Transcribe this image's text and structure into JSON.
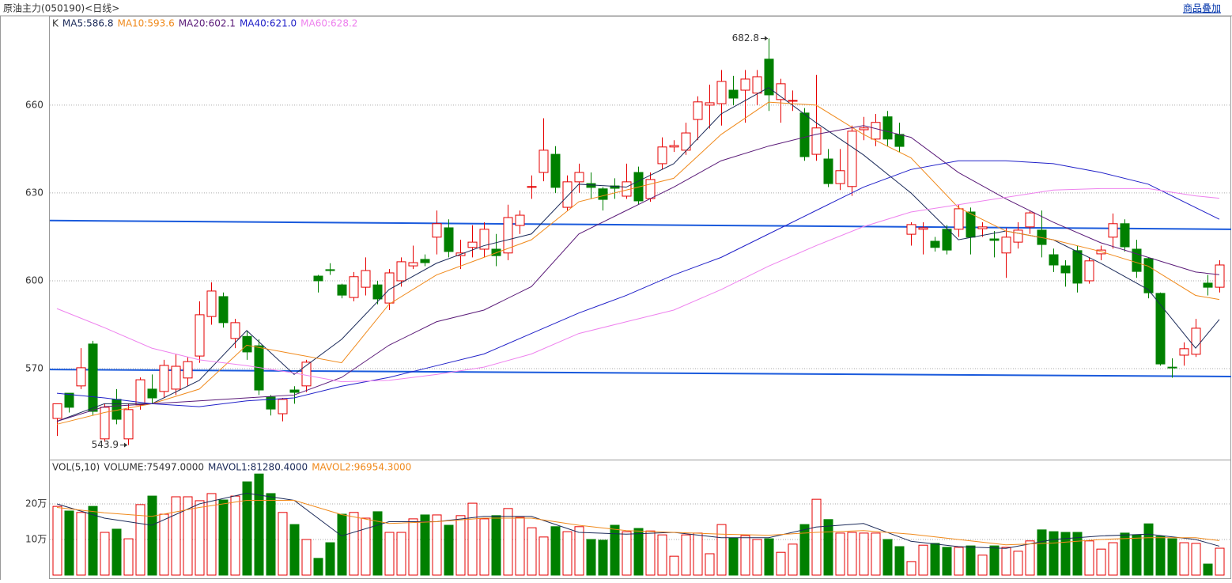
{
  "chart_data": [
    {
      "type": "candlestick",
      "title": "原油主力(050190)<日线>",
      "button": "商品叠加",
      "legend": "K",
      "ylim": [
        539.2,
        690.5
      ],
      "yticks": [
        570,
        600,
        630,
        660
      ],
      "grid": true,
      "up_color": "#e60000",
      "down_color": "#008000",
      "open": [
        553,
        561.6,
        564.1,
        578.4,
        546,
        559.5,
        546,
        557.6,
        563,
        562.2,
        563,
        566.8,
        574.3,
        587.8,
        594.6,
        580.3,
        581,
        577.8,
        560.3,
        554.6,
        562.7,
        564.1,
        601.6,
        603.8,
        598.6,
        594.3,
        597.8,
        598.6,
        592.4,
        600,
        605.1,
        607.3,
        614.9,
        618.1,
        608.6,
        611.4,
        610.8,
        610.8,
        609.5,
        618.9,
        632,
        637,
        643.2,
        625.1,
        633.8,
        633.2,
        631.4,
        632.4,
        628.9,
        637,
        628.1,
        640,
        645.7,
        644.6,
        655.1,
        660,
        660.5,
        665.1,
        665.1,
        664.1,
        675.7,
        661.9,
        661.4,
        657.3,
        643.2,
        641.6,
        633.2,
        632.2,
        651.6,
        648.4,
        656,
        650,
        615.9,
        617.6,
        613.5,
        617.6,
        617.6,
        623.5,
        617.8,
        614.3,
        609.5,
        613.2,
        618.4,
        617.3,
        608.9,
        605.1,
        610.3,
        600,
        609.2,
        614.9,
        619.5,
        610.8,
        607.6,
        595.7,
        570.5,
        574.6,
        574.9,
        599.2,
        597.8
      ],
      "high": [
        558,
        561.6,
        577,
        579.5,
        558,
        563,
        558,
        567,
        568,
        573,
        575,
        574,
        593,
        599.5,
        596,
        587,
        583,
        580,
        561,
        560,
        564,
        573,
        602,
        606,
        599,
        603,
        608,
        600,
        604,
        608,
        612,
        609,
        624,
        621,
        614,
        619,
        620,
        616,
        626,
        624,
        636,
        655.5,
        646,
        636,
        640,
        637,
        632,
        635,
        640,
        639,
        637,
        649,
        648,
        654,
        663,
        667,
        672,
        670,
        672,
        672,
        682.8,
        669,
        665,
        659,
        670.3,
        645,
        645,
        653,
        656,
        657,
        658,
        654,
        620,
        620,
        615,
        619,
        626,
        625,
        620,
        617,
        618,
        620,
        624,
        624,
        611,
        607,
        612,
        608,
        612,
        623,
        621,
        614,
        608,
        596,
        573.5,
        579,
        587,
        602,
        607
      ],
      "low": [
        547,
        555,
        563,
        554,
        545,
        551,
        543.9,
        556,
        558,
        560,
        561,
        564,
        572,
        585,
        584,
        577,
        573,
        561,
        554,
        552,
        558,
        562,
        596,
        602,
        594,
        593,
        595,
        592,
        590,
        598,
        604,
        605,
        609,
        608,
        604,
        608,
        608,
        605,
        607,
        616,
        628,
        634,
        630,
        624,
        630,
        628,
        624,
        628,
        628,
        626,
        627,
        638,
        644,
        643,
        648,
        652,
        653,
        660,
        654,
        660,
        658,
        654,
        658,
        641,
        641,
        632,
        631,
        629,
        648,
        646,
        646,
        644,
        612,
        609,
        610,
        609,
        615,
        609,
        615,
        608,
        601,
        611,
        616,
        608,
        603,
        598,
        596,
        599,
        607,
        611,
        610,
        601,
        594,
        571,
        566.9,
        571,
        574,
        595,
        596
      ],
      "close": [
        558,
        556.8,
        570.3,
        555.4,
        556.8,
        552.7,
        556,
        566.2,
        560,
        571.1,
        570.8,
        572.4,
        588.4,
        596.5,
        585.7,
        585.7,
        575.7,
        562.7,
        556.2,
        559.5,
        561.9,
        572.2,
        600,
        603.5,
        595.1,
        601.4,
        603.5,
        593.8,
        602.7,
        606.5,
        606.2,
        606.2,
        619.5,
        610,
        609.5,
        613.2,
        617.6,
        608.6,
        621.6,
        622.4,
        632.2,
        644.6,
        631.9,
        633.8,
        637,
        631.9,
        627.8,
        631.6,
        633.8,
        627.3,
        634.6,
        645.7,
        646.2,
        650.5,
        661.1,
        660.8,
        668.1,
        662.4,
        668.9,
        669.7,
        663.5,
        667.3,
        661.6,
        642.4,
        652.2,
        633.2,
        637.6,
        651.1,
        652.2,
        654.1,
        648.4,
        645.9,
        619.2,
        618.1,
        611.4,
        610.5,
        624.6,
        614.9,
        618.4,
        613.8,
        614.9,
        617.3,
        623.2,
        612.4,
        605.4,
        602.7,
        599.2,
        606.8,
        610.5,
        619.5,
        611.6,
        603.2,
        595.9,
        571.6,
        570.3,
        576.8,
        583.8,
        597.8,
        605.4
      ],
      "max_label": "682.8",
      "min_label": "543.9",
      "ma_x": [
        0,
        4,
        8,
        12,
        16,
        20,
        24,
        28,
        32,
        36,
        40,
        44,
        48,
        52,
        56,
        60,
        64,
        68,
        72,
        76,
        80,
        84,
        88,
        92,
        96,
        98
      ],
      "ma": [
        {
          "label": "MA5:586.8",
          "color": "#1c2b5a",
          "values": [
            552,
            558,
            558,
            566,
            583,
            568,
            580,
            597,
            606,
            612,
            616,
            633,
            632,
            640,
            657,
            666,
            654,
            643,
            630,
            614,
            617,
            614,
            606,
            597,
            577,
            586.8
          ]
        },
        {
          "label": "MA10:593.6",
          "color": "#f08a1c",
          "values": [
            551,
            555,
            558,
            563,
            578,
            575,
            572,
            592,
            602,
            608,
            614,
            627,
            631,
            635,
            650,
            661,
            660,
            650,
            642,
            625,
            617,
            614,
            610,
            605,
            595,
            593.6
          ]
        },
        {
          "label": "MA20:602.1",
          "color": "#5a1a78",
          "values": [
            552,
            557,
            558,
            559,
            560,
            561,
            567,
            578,
            586,
            590,
            598,
            616,
            624,
            632,
            641,
            646,
            650,
            653,
            649,
            637,
            628,
            620,
            613,
            608,
            603,
            602.1
          ]
        },
        {
          "label": "MA40:621.0",
          "color": "#2020c8",
          "values": [
            561.6,
            560,
            558,
            557,
            559,
            560,
            564,
            567,
            571,
            575,
            582,
            589,
            595,
            602,
            608,
            616,
            624,
            632,
            638,
            641,
            641,
            640,
            637,
            633,
            625,
            621
          ]
        },
        {
          "label": "MA60:628.2",
          "color": "#ee82ee",
          "values": [
            590.5,
            584,
            577,
            573,
            571,
            568.5,
            565.5,
            566,
            568,
            570.5,
            575,
            582,
            586,
            590,
            597,
            605,
            612,
            618.5,
            623.5,
            626,
            628.5,
            631,
            631.5,
            631.5,
            629,
            628.2
          ]
        }
      ],
      "trendlines": [
        {
          "color": "#1a5adc",
          "values": [
            620.6,
            617.6
          ]
        },
        {
          "color": "#1a5adc",
          "values": [
            569.7,
            567.3
          ]
        }
      ]
    },
    {
      "type": "volume",
      "legend": "VOL(5,10)",
      "label": "VOLUME:75497.0000",
      "ylim": [
        0,
        320000
      ],
      "yticks": [
        {
          "value": 200000,
          "label": "20万"
        },
        {
          "value": 100000,
          "label": "10万"
        }
      ],
      "grid": true,
      "values": [
        193000,
        180000,
        176000,
        193000,
        120000,
        129000,
        102000,
        198000,
        222000,
        171000,
        220000,
        220000,
        209000,
        229000,
        211000,
        222000,
        262000,
        284000,
        229000,
        176000,
        142000,
        100000,
        47000,
        91000,
        171000,
        176000,
        160000,
        178000,
        120000,
        120000,
        158000,
        169000,
        169000,
        140000,
        167000,
        202000,
        158000,
        167000,
        187000,
        162000,
        133000,
        107000,
        136000,
        122000,
        136000,
        100000,
        98000,
        140000,
        122000,
        131000,
        124000,
        113000,
        53000,
        113000,
        118000,
        60000,
        142000,
        104000,
        111000,
        100000,
        102000,
        64000,
        87000,
        142000,
        213000,
        156000,
        118000,
        120000,
        118000,
        118000,
        100000,
        80000,
        38000,
        84000,
        89000,
        78000,
        78000,
        82000,
        56000,
        82000,
        78000,
        67000,
        96000,
        127000,
        122000,
        120000,
        120000,
        96000,
        73000,
        91000,
        118000,
        113000,
        144000,
        109000,
        102000,
        91000,
        89000,
        31000,
        75497
      ],
      "ma_x": [
        0,
        4,
        8,
        12,
        16,
        20,
        24,
        28,
        32,
        36,
        40,
        44,
        48,
        52,
        56,
        60,
        64,
        68,
        72,
        76,
        80,
        84,
        88,
        92,
        96,
        98
      ],
      "ma": [
        {
          "label": "MAVOL1:81280.4000",
          "color": "#1c2b5a",
          "values": [
            200000,
            160000,
            140000,
            200000,
            230000,
            210000,
            110000,
            150000,
            150000,
            165000,
            165000,
            120000,
            115000,
            120000,
            105000,
            105000,
            135000,
            145000,
            95000,
            80000,
            75000,
            100000,
            110000,
            115000,
            100000,
            81280.4
          ]
        },
        {
          "label": "MAVOL2:96954.3000",
          "color": "#f08a1c",
          "values": [
            190000,
            175000,
            165000,
            190000,
            210000,
            210000,
            170000,
            145000,
            150000,
            160000,
            160000,
            140000,
            125000,
            120000,
            115000,
            112000,
            120000,
            125000,
            115000,
            100000,
            85000,
            90000,
            100000,
            105000,
            105000,
            96954.3
          ]
        }
      ]
    }
  ]
}
